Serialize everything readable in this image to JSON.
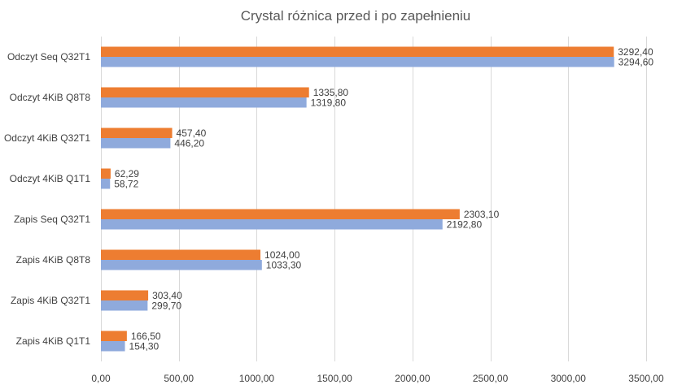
{
  "chart_data": {
    "type": "bar",
    "orientation": "horizontal",
    "title": "Crystal różnica przed i po zapełnieniu",
    "xlabel": "",
    "ylabel": "",
    "xlim": [
      0,
      3500
    ],
    "ticks": [
      0,
      500,
      1000,
      1500,
      2000,
      2500,
      3000,
      3500
    ],
    "tick_labels": [
      "0,00",
      "500,00",
      "1000,00",
      "1500,00",
      "2000,00",
      "2500,00",
      "3000,00",
      "3500,00"
    ],
    "grid": true,
    "legend": "none",
    "categories": [
      "Odczyt Seq Q32T1",
      "Odczyt 4KiB Q8T8",
      "Odczyt 4KiB Q32T1",
      "Odczyt 4KiB Q1T1",
      "Zapis Seq Q32T1",
      "Zapis 4KiB Q8T8",
      "Zapis 4KiB Q32T1",
      "Zapis 4KiB Q1T1"
    ],
    "series": [
      {
        "color": "#ed7d31",
        "values": [
          3292.4,
          1335.8,
          457.4,
          62.29,
          2303.1,
          1024.0,
          303.4,
          166.5
        ],
        "labels": [
          "3292,40",
          "1335,80",
          "457,40",
          "62,29",
          "2303,10",
          "1024,00",
          "303,40",
          "166,50"
        ]
      },
      {
        "color": "#8faadc",
        "values": [
          3294.6,
          1319.8,
          446.2,
          58.72,
          2192.8,
          1033.3,
          299.7,
          154.3
        ],
        "labels": [
          "3294,60",
          "1319,80",
          "446,20",
          "58,72",
          "2192,80",
          "1033,30",
          "299,70",
          "154,30"
        ]
      }
    ]
  }
}
